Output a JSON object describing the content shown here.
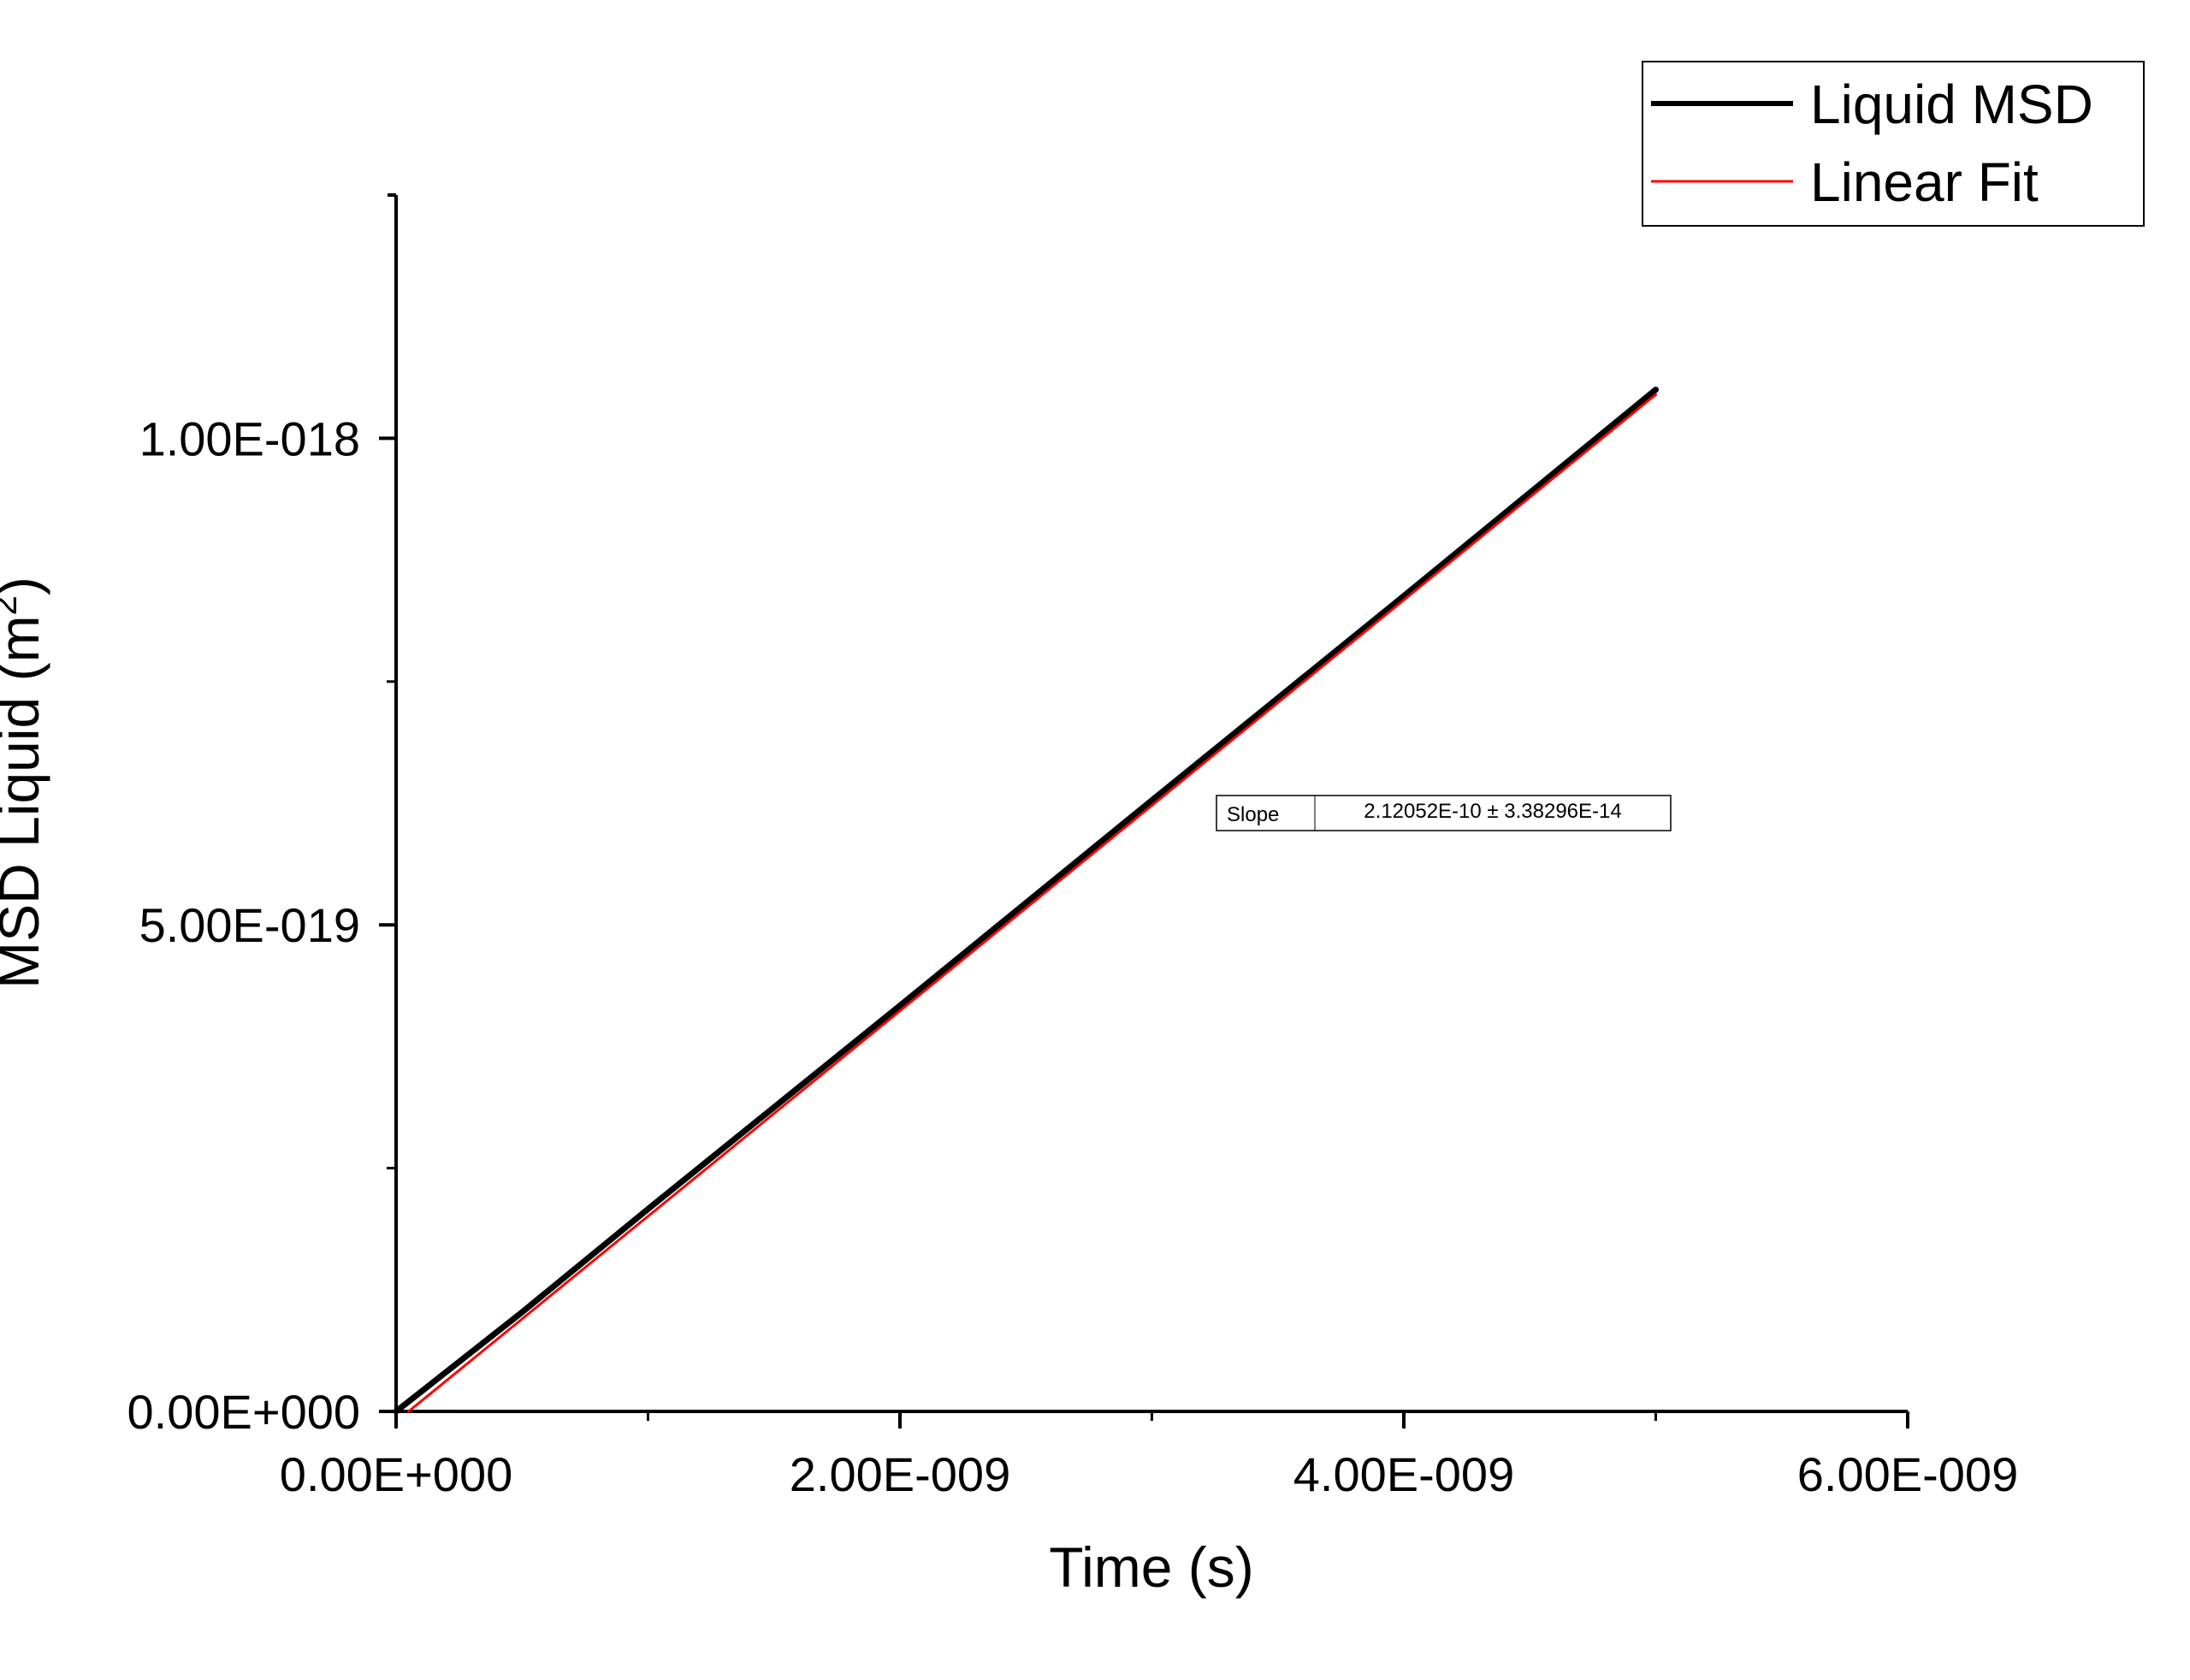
{
  "chart_data": {
    "type": "line",
    "xlabel": "Time (s)",
    "ylabel": "MSD Liquid (m",
    "ylabel_superscript": "2",
    "ylabel_close": ")",
    "xlim": [
      0,
      6e-09
    ],
    "ylim": [
      0,
      1.25e-18
    ],
    "x_ticks": [
      {
        "value": 0,
        "label": "0.00E+000"
      },
      {
        "value": 2e-09,
        "label": "2.00E-009"
      },
      {
        "value": 4e-09,
        "label": "4.00E-009"
      },
      {
        "value": 6e-09,
        "label": "6.00E-009"
      }
    ],
    "x_minor_ticks": [
      1e-09,
      3e-09,
      5e-09
    ],
    "y_ticks": [
      {
        "value": 0,
        "label": "0.00E+000"
      },
      {
        "value": 5e-19,
        "label": "5.00E-019"
      },
      {
        "value": 1e-18,
        "label": "1.00E-018"
      }
    ],
    "y_minor_ticks": [
      2.5e-19,
      7.5e-19
    ],
    "grid": false,
    "legend_position": "top-right",
    "series": [
      {
        "name": "Liquid MSD",
        "color": "#000000",
        "x": [
          0,
          5e-10,
          1e-09,
          2e-09,
          3e-09,
          4e-09,
          5e-09
        ],
        "y": [
          0,
          1.02e-19,
          2.08e-19,
          4.17e-19,
          6.28e-19,
          8.38e-19,
          1.05e-18
        ]
      },
      {
        "name": "Linear Fit",
        "color": "#ff0000",
        "x": [
          5e-11,
          5e-09
        ],
        "y": [
          0,
          1.045e-18
        ]
      }
    ],
    "annotation": {
      "label": "Slope",
      "value": "2.12052E-10 ± 3.38296E-14"
    }
  }
}
